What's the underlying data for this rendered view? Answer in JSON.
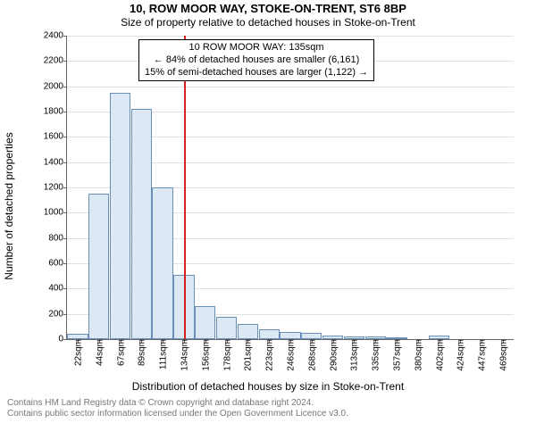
{
  "title": "10, ROW MOOR WAY, STOKE-ON-TRENT, ST6 8BP",
  "subtitle": "Size of property relative to detached houses in Stoke-on-Trent",
  "y_axis_label": "Number of detached properties",
  "x_axis_title": "Distribution of detached houses by size in Stoke-on-Trent",
  "footer_line1": "Contains HM Land Registry data © Crown copyright and database right 2024.",
  "footer_line2": "Contains public sector information licensed under the Open Government Licence v3.0.",
  "annotation": {
    "line1": "10 ROW MOOR WAY: 135sqm",
    "line2": "← 84% of detached houses are smaller (6,161)",
    "line3": "15% of semi-detached houses are larger (1,122) →"
  },
  "chart": {
    "type": "histogram",
    "ylim": [
      0,
      2400
    ],
    "ytick_step": 200,
    "background_color": "#ffffff",
    "grid_color": "#e0e0e0",
    "axis_color": "#666666",
    "bar_fill": "#dde8f5",
    "bar_border": "#6a8fb8",
    "marker_color": "#d62020",
    "marker_x_value": 135,
    "x_start": 11,
    "x_bin_width": 22.5,
    "categories": [
      "22sqm",
      "44sqm",
      "67sqm",
      "89sqm",
      "111sqm",
      "134sqm",
      "156sqm",
      "178sqm",
      "201sqm",
      "223sqm",
      "246sqm",
      "268sqm",
      "290sqm",
      "313sqm",
      "335sqm",
      "357sqm",
      "380sqm",
      "402sqm",
      "424sqm",
      "447sqm",
      "469sqm"
    ],
    "values": [
      40,
      1150,
      1950,
      1820,
      1200,
      510,
      260,
      180,
      120,
      80,
      60,
      50,
      30,
      20,
      20,
      5,
      0,
      30,
      0,
      0,
      0
    ],
    "tick_fontsize": 10,
    "label_fontsize": 12,
    "title_fontsize": 13
  }
}
